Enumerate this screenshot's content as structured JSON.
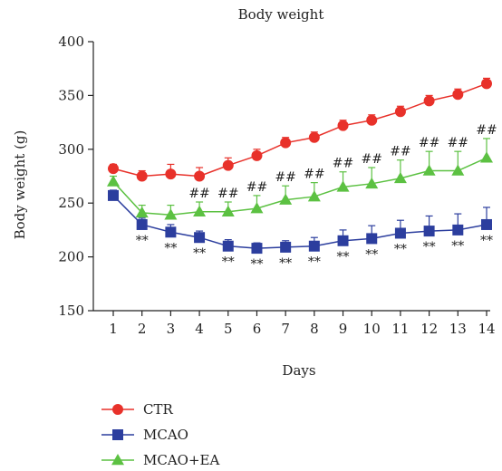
{
  "chart_data": {
    "type": "line",
    "title": "Body weight",
    "xlabel": "Days",
    "ylabel": "Body weight (g)",
    "ylim": [
      150,
      400
    ],
    "yticks": [
      150,
      200,
      250,
      300,
      350,
      400
    ],
    "x": [
      1,
      2,
      3,
      4,
      5,
      6,
      7,
      8,
      9,
      10,
      11,
      12,
      13,
      14
    ],
    "grid": false,
    "legend_position": "bottom-left",
    "series": [
      {
        "name": "CTR",
        "color": "#e8312a",
        "marker": "circle",
        "values": [
          282,
          275,
          277,
          275,
          285,
          294,
          306,
          311,
          322,
          327,
          335,
          345,
          351,
          361
        ],
        "error": [
          4,
          5,
          9,
          8,
          7,
          6,
          5,
          5,
          5,
          5,
          5,
          5,
          5,
          5
        ]
      },
      {
        "name": "MCAO",
        "color": "#2c3e9e",
        "marker": "square",
        "values": [
          257,
          230,
          223,
          218,
          210,
          208,
          209,
          210,
          215,
          217,
          222,
          224,
          225,
          230
        ],
        "error": [
          5,
          6,
          7,
          6,
          6,
          5,
          6,
          8,
          10,
          12,
          12,
          14,
          15,
          16
        ]
      },
      {
        "name": "MCAO+EA",
        "color": "#5cc142",
        "marker": "triangle",
        "values": [
          270,
          241,
          239,
          242,
          242,
          245,
          253,
          256,
          265,
          268,
          273,
          280,
          280,
          292
        ],
        "error": [
          5,
          7,
          9,
          9,
          9,
          12,
          13,
          13,
          14,
          15,
          17,
          18,
          18,
          18
        ]
      }
    ],
    "annotations": {
      "below_mcao": {
        "text": "**",
        "days": [
          2,
          3,
          4,
          5,
          6,
          7,
          8,
          9,
          10,
          11,
          12,
          13,
          14
        ]
      },
      "above_ea": {
        "text": "##",
        "days": [
          4,
          5,
          6,
          7,
          8,
          9,
          10,
          11,
          12,
          13,
          14
        ]
      }
    }
  }
}
